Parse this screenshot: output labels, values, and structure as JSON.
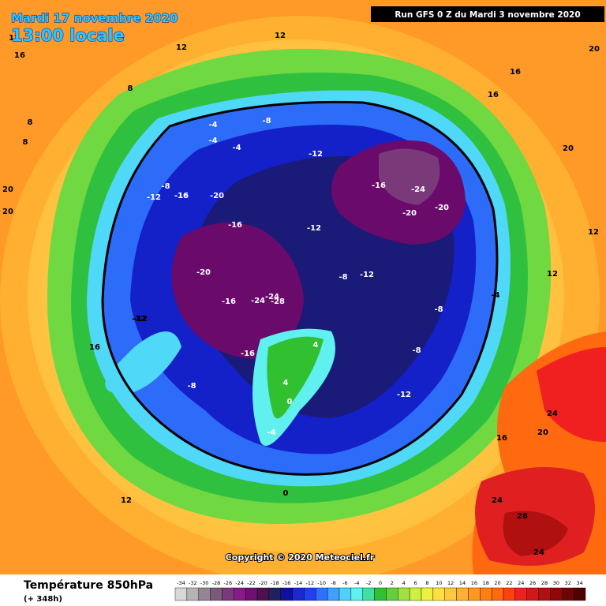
{
  "header": {
    "date": "Mardi 17 novembre 2020",
    "time": "13:00 locale",
    "run": "Run GFS 0 Z du Mardi 3 novembre 2020"
  },
  "copyright": "Copyright © 2020 Meteociel.fr",
  "footer": {
    "title": "Température 850hPa",
    "lead": "(+ 348h)"
  },
  "legend": {
    "values": [
      -34,
      -32,
      -30,
      -28,
      -26,
      -24,
      -22,
      -20,
      -18,
      -16,
      -14,
      -12,
      -10,
      -8,
      -6,
      -4,
      -2,
      0,
      2,
      4,
      6,
      8,
      10,
      12,
      14,
      16,
      18,
      20,
      22,
      24,
      26,
      28,
      30,
      32,
      34
    ],
    "colors": [
      "#d8d8d8",
      "#b4b4b4",
      "#948494",
      "#7a5a7a",
      "#7a3a7a",
      "#8a1a8a",
      "#701070",
      "#501050",
      "#202060",
      "#1010a0",
      "#1a2ad0",
      "#2040f0",
      "#3070ff",
      "#40a0ff",
      "#50d0ff",
      "#60f0f0",
      "#40e0a0",
      "#30c030",
      "#60d040",
      "#a0e040",
      "#d0f040",
      "#f0f040",
      "#ffe040",
      "#ffc840",
      "#ffb030",
      "#ff9820",
      "#ff8010",
      "#ff6a10",
      "#ff4010",
      "#f02020",
      "#d01818",
      "#b01010",
      "#900808",
      "#700404",
      "#500000"
    ]
  },
  "map": {
    "labels": [
      12,
      16,
      20,
      8,
      12,
      12,
      -4,
      -4,
      -8,
      -8,
      -12,
      -16,
      -16,
      -20,
      -24,
      -20,
      -16,
      -8,
      -12,
      -16,
      -12,
      -20,
      -24,
      -28,
      -24,
      -16,
      -8,
      -12,
      -8,
      -4,
      4,
      0,
      -4,
      0,
      8,
      4,
      8,
      12,
      16,
      20,
      24,
      20,
      24,
      28,
      24,
      16,
      12,
      12,
      16,
      20,
      -12,
      -8,
      -4,
      -12,
      -16,
      -12,
      -20,
      16,
      20
    ]
  }
}
